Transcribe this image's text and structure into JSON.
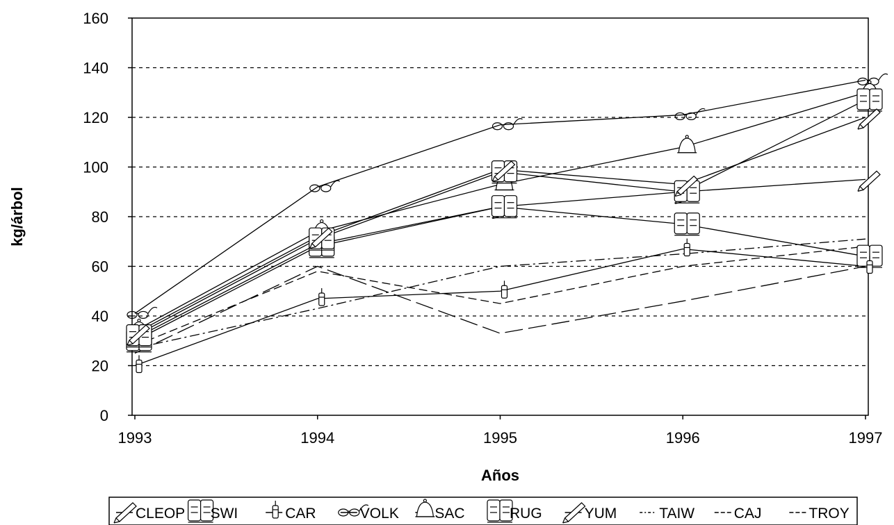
{
  "chart_data": {
    "type": "line",
    "title": "",
    "xlabel": "Años",
    "ylabel": "kg/árbol",
    "x": [
      "1993",
      "1994",
      "1995",
      "1996",
      "1997"
    ],
    "ylim": [
      0,
      160
    ],
    "yticks": [
      "0",
      "20",
      "40",
      "60",
      "80",
      "100",
      "120",
      "140",
      "160"
    ],
    "grid": "horizontal dashed",
    "legend_position": "bottom",
    "series": [
      {
        "name": "CLEOP",
        "values": [
          31,
          69,
          84,
          90,
          95
        ],
        "line": "solid",
        "marker": "pencil"
      },
      {
        "name": "SWI",
        "values": [
          30,
          68,
          84,
          77,
          64
        ],
        "line": "solid",
        "marker": "book"
      },
      {
        "name": "CAR",
        "values": [
          20,
          47,
          50,
          67,
          60
        ],
        "line": "solid",
        "marker": "pen"
      },
      {
        "name": "VOLK",
        "values": [
          41,
          92,
          117,
          121,
          135
        ],
        "line": "solid",
        "marker": "glasses"
      },
      {
        "name": "SAC",
        "values": [
          34,
          74,
          93,
          108,
          130
        ],
        "line": "solid",
        "marker": "bell"
      },
      {
        "name": "RUG",
        "values": [
          32,
          71,
          98,
          90,
          127
        ],
        "line": "solid",
        "marker": "book"
      },
      {
        "name": "YUM",
        "values": [
          33,
          72,
          99,
          93,
          120
        ],
        "line": "solid",
        "marker": "pencil"
      },
      {
        "name": "TAIW",
        "values": [
          27,
          43,
          60,
          65,
          71
        ],
        "line": "dash-dot",
        "marker": "none"
      },
      {
        "name": "CAJ",
        "values": [
          25,
          60,
          33,
          46,
          60
        ],
        "line": "long-dash",
        "marker": "none"
      },
      {
        "name": "TROY",
        "values": [
          28,
          58,
          45,
          60,
          68
        ],
        "line": "dash",
        "marker": "none"
      }
    ]
  }
}
